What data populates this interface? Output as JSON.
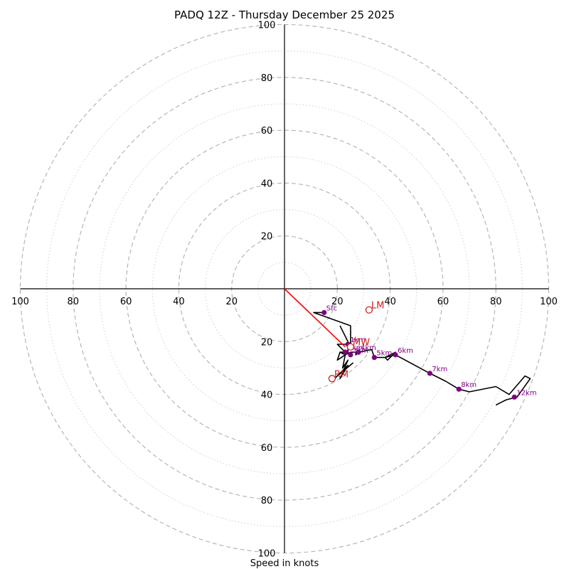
{
  "chart_data": {
    "type": "hodograph",
    "title": "PADQ 12Z - Thursday December 25 2025",
    "xlabel": "Speed in knots",
    "axis_range": [
      -100,
      100
    ],
    "ring_major_knots": [
      20,
      40,
      60,
      80,
      100
    ],
    "ring_minor_knots": [
      10,
      30,
      50,
      70,
      90
    ],
    "tick_labels": {
      "x_left": [
        "100",
        "80",
        "60",
        "40",
        "20"
      ],
      "x_right": [
        "20",
        "40",
        "60",
        "80",
        "100"
      ],
      "y_top": [
        "100",
        "80",
        "60",
        "40",
        "20"
      ],
      "y_bottom": [
        "20",
        "40",
        "60",
        "80",
        "100"
      ]
    },
    "colors": {
      "trace": "#000000",
      "height_marker": "#800080",
      "motion": "#cc2222",
      "shear_line": "#ff0000",
      "major_ring": "#b0b0b0",
      "minor_ring": "#cfcfcf"
    },
    "trace": [
      [
        15,
        -9
      ],
      [
        11,
        -9
      ],
      [
        25,
        -14
      ],
      [
        25,
        -20
      ],
      [
        25,
        -21
      ],
      [
        24,
        -21
      ],
      [
        22,
        -21
      ],
      [
        20,
        -21
      ],
      [
        23,
        -24
      ],
      [
        21,
        -24
      ],
      [
        23,
        -25
      ],
      [
        25,
        -24
      ],
      [
        27,
        -24
      ],
      [
        27,
        -25
      ],
      [
        28,
        -24
      ],
      [
        33,
        -23
      ],
      [
        34,
        -26
      ],
      [
        36,
        -26
      ],
      [
        38,
        -26
      ],
      [
        42,
        -24
      ],
      [
        39,
        -27
      ],
      [
        38,
        -26
      ],
      [
        42,
        -25
      ],
      [
        55,
        -32
      ],
      [
        61,
        -35
      ],
      [
        66,
        -38
      ],
      [
        70,
        -39
      ],
      [
        80,
        -37
      ],
      [
        85,
        -40
      ],
      [
        91,
        -33
      ],
      [
        93,
        -34
      ],
      [
        88,
        -41
      ],
      [
        84,
        -42
      ],
      [
        82,
        -43
      ],
      [
        80,
        -44
      ]
    ],
    "secondary_trace": [
      [
        21,
        -14
      ],
      [
        24,
        -20
      ],
      [
        24,
        -24
      ],
      [
        21,
        -24
      ],
      [
        20,
        -27
      ],
      [
        23,
        -25
      ],
      [
        22,
        -30
      ],
      [
        24,
        -27
      ],
      [
        21,
        -34
      ],
      [
        24,
        -29
      ],
      [
        18,
        -35
      ],
      [
        22,
        -31
      ],
      [
        20,
        -33
      ],
      [
        26,
        -28
      ]
    ],
    "height_markers": [
      {
        "label": "Sfc",
        "u": 15,
        "v": -9
      },
      {
        "label": "1km",
        "u": 24,
        "v": -21
      },
      {
        "label": "2km",
        "u": 23,
        "v": -24
      },
      {
        "label": "3km",
        "u": 25,
        "v": -25
      },
      {
        "label": "4km",
        "u": 28,
        "v": -24
      },
      {
        "label": "5km",
        "u": 34,
        "v": -26
      },
      {
        "label": "6km",
        "u": 42,
        "v": -25
      },
      {
        "label": "7km",
        "u": 55,
        "v": -32
      },
      {
        "label": "8km",
        "u": 66,
        "v": -38
      },
      {
        "label": "12km",
        "u": 87,
        "v": -41
      }
    ],
    "storm_motion": [
      {
        "label": "LM",
        "u": 32,
        "v": -8
      },
      {
        "label": "MW",
        "u": 25,
        "v": -22
      },
      {
        "label": "RM",
        "u": 18,
        "v": -34
      }
    ],
    "shear_line": [
      [
        0,
        0
      ],
      [
        23,
        -22
      ]
    ]
  }
}
